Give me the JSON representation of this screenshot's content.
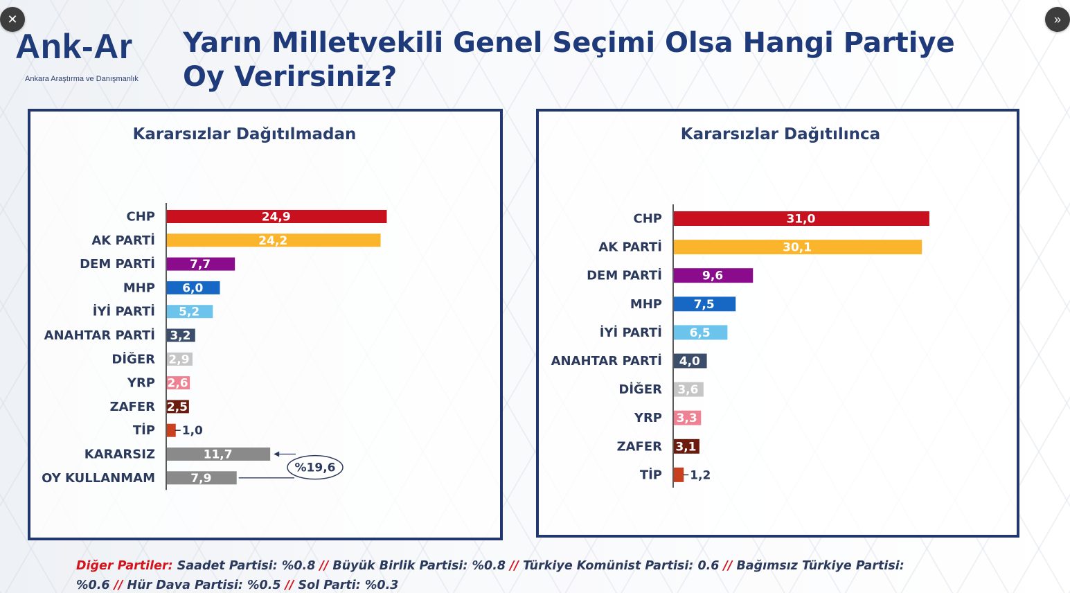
{
  "controls": {
    "close_icon": "✕",
    "next_icon": "»"
  },
  "logo": {
    "word": "Ank-Ar",
    "subtitle": "Ankara Araştırma ve Danışmanlık",
    "color": "#1f3b7a"
  },
  "title": "Yarın Milletvekili Genel Seçimi Olsa Hangi Partiye Oy Verirsiniz?",
  "chart_data": [
    {
      "type": "bar",
      "orientation": "horizontal",
      "title": "Kararsızlar Dağıtılmadan",
      "categories": [
        "CHP",
        "AK PARTİ",
        "DEM PARTİ",
        "MHP",
        "İYİ PARTİ",
        "ANAHTAR PARTİ",
        "DİĞER",
        "YRP",
        "ZAFER",
        "TİP",
        "KARARSIZ",
        "OY KULLANMAM"
      ],
      "values": [
        24.9,
        24.2,
        7.7,
        6.0,
        5.2,
        3.2,
        2.9,
        2.6,
        2.5,
        1.0,
        11.7,
        7.9
      ],
      "value_labels": [
        "24,9",
        "24,2",
        "7,7",
        "6,0",
        "5,2",
        "3,2",
        "2,9",
        "2,6",
        "2,5",
        "1,0",
        "11,7",
        "7,9"
      ],
      "colors": [
        "#c8101f",
        "#fbb52c",
        "#8a0c8d",
        "#1767c4",
        "#6cc4ec",
        "#3b4d6a",
        "#c6c6c6",
        "#ef8292",
        "#6b1a0e",
        "#c8401e",
        "#8a8a8a",
        "#8a8a8a"
      ],
      "annotation": {
        "text": "%19,6",
        "applies_to": [
          "KARARSIZ",
          "OY KULLANMAM"
        ]
      }
    },
    {
      "type": "bar",
      "orientation": "horizontal",
      "title": "Kararsızlar Dağıtılınca",
      "categories": [
        "CHP",
        "AK PARTİ",
        "DEM PARTİ",
        "MHP",
        "İYİ PARTİ",
        "ANAHTAR PARTİ",
        "DİĞER",
        "YRP",
        "ZAFER",
        "TİP"
      ],
      "values": [
        31.0,
        30.1,
        9.6,
        7.5,
        6.5,
        4.0,
        3.6,
        3.3,
        3.1,
        1.2
      ],
      "value_labels": [
        "31,0",
        "30,1",
        "9,6",
        "7,5",
        "6,5",
        "4,0",
        "3,6",
        "3,3",
        "3,1",
        "1,2"
      ],
      "colors": [
        "#c8101f",
        "#fbb52c",
        "#8a0c8d",
        "#1767c4",
        "#6cc4ec",
        "#3b4d6a",
        "#c6c6c6",
        "#ef8292",
        "#6b1a0e",
        "#c8401e"
      ]
    }
  ],
  "footnote": {
    "lead": "Diğer Partiler:",
    "separator": "//",
    "items": [
      "Saadet Partisi: %0.8",
      "Büyük Birlik Partisi: %0.8",
      "Türkiye Komünist Partisi: 0.6",
      "Bağımsız Türkiye Partisi: %0.6",
      "Hür Dava Partisi: %0.5",
      "Sol Parti: %0.3"
    ]
  }
}
